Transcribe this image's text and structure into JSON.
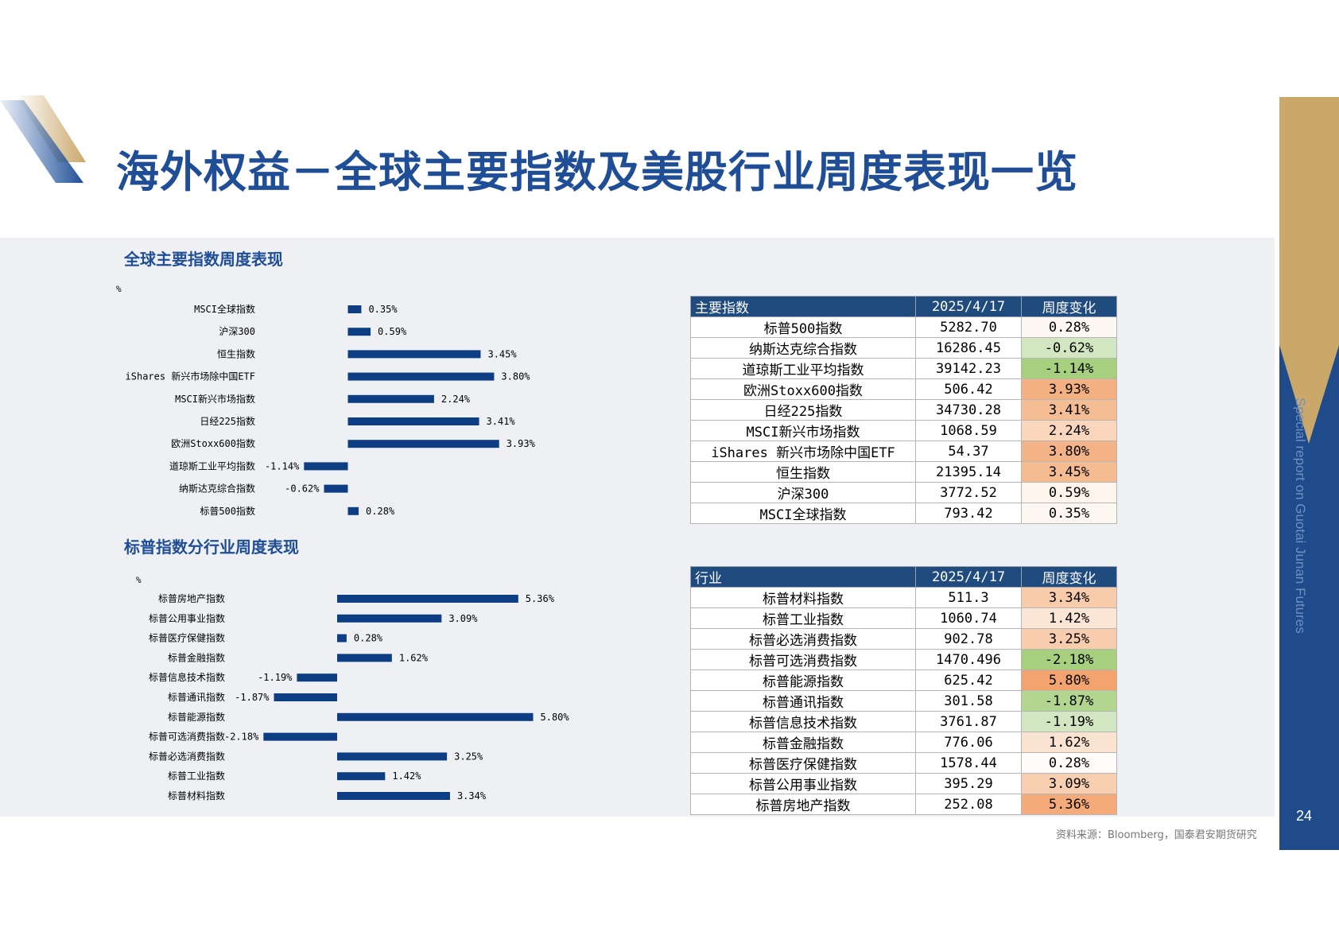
{
  "page": {
    "title": "海外权益－全球主要指数及美股行业周度表现一览",
    "page_number": "24",
    "side_text": "Special report on Guotai Junan Futures",
    "source": "资料来源：Bloomberg，国泰君安期货研究",
    "colors": {
      "title": "#1f4e96",
      "bar": "#0d3e84",
      "header": "#1f4b7e",
      "sidebar": "#1f4b8a",
      "gold": "#c9a86a"
    }
  },
  "charts": {
    "global": {
      "subtitle": "全球主要指数周度表现",
      "unit": "%"
    },
    "sector": {
      "subtitle": "标普指数分行业周度表现",
      "unit": "%"
    }
  },
  "chart_data": [
    {
      "type": "bar",
      "orientation": "horizontal",
      "ylabel": "%",
      "categories": [
        "MSCI全球指数",
        "沪深300",
        "恒生指数",
        "iShares 新兴市场除中国ETF",
        "MSCI新兴市场指数",
        "日经225指数",
        "欧洲Stoxx600指数",
        "道琼斯工业平均指数",
        "纳斯达克综合指数",
        "标普500指数"
      ],
      "values": [
        0.35,
        0.59,
        3.45,
        3.8,
        2.24,
        3.41,
        3.93,
        -1.14,
        -0.62,
        0.28
      ],
      "labels": [
        "0.35%",
        "0.59%",
        "3.45%",
        "3.80%",
        "2.24%",
        "3.41%",
        "3.93%",
        "-1.14%",
        "-0.62%",
        "0.28%"
      ]
    },
    {
      "type": "bar",
      "orientation": "horizontal",
      "ylabel": "%",
      "categories": [
        "标普房地产指数",
        "标普公用事业指数",
        "标普医疗保健指数",
        "标普金融指数",
        "标普信息技术指数",
        "标普通讯指数",
        "标普能源指数",
        "标普可选消费指数",
        "标普必选消费指数",
        "标普工业指数",
        "标普材料指数"
      ],
      "values": [
        5.36,
        3.09,
        0.28,
        1.62,
        -1.19,
        -1.87,
        5.8,
        -2.18,
        3.25,
        1.42,
        3.34
      ],
      "labels": [
        "5.36%",
        "3.09%",
        "0.28%",
        "1.62%",
        "-1.19%",
        "-1.87%",
        "5.80%",
        "-2.18%",
        "3.25%",
        "1.42%",
        "3.34%"
      ]
    }
  ],
  "tables": {
    "index": {
      "headers": [
        "主要指数",
        "2025/4/17",
        "周度变化"
      ],
      "rows": [
        {
          "name": "标普500指数",
          "price": "5282.70",
          "change": "0.28%",
          "color": "#fdf8f3"
        },
        {
          "name": "纳斯达克综合指数",
          "price": "16286.45",
          "change": "-0.62%",
          "color": "#d3e6c2"
        },
        {
          "name": "道琼斯工业平均指数",
          "price": "39142.23",
          "change": "-1.14%",
          "color": "#a6d07e"
        },
        {
          "name": "欧洲Stoxx600指数",
          "price": "506.42",
          "change": "3.93%",
          "color": "#f3b080"
        },
        {
          "name": "日经225指数",
          "price": "34730.28",
          "change": "3.41%",
          "color": "#f5bd94"
        },
        {
          "name": "MSCI新兴市场指数",
          "price": "1068.59",
          "change": "2.24%",
          "color": "#f9d6bc"
        },
        {
          "name": "iShares 新兴市场除中国ETF",
          "price": "54.37",
          "change": "3.80%",
          "color": "#f4b387"
        },
        {
          "name": "恒生指数",
          "price": "21395.14",
          "change": "3.45%",
          "color": "#f5bb91"
        },
        {
          "name": "沪深300",
          "price": "3772.52",
          "change": "0.59%",
          "color": "#fdf4ec"
        },
        {
          "name": "MSCI全球指数",
          "price": "793.42",
          "change": "0.35%",
          "color": "#fdf7f2"
        }
      ]
    },
    "sector": {
      "headers": [
        "行业",
        "2025/4/17",
        "周度变化"
      ],
      "rows": [
        {
          "name": "标普材料指数",
          "price": "511.3",
          "change": "3.34%",
          "color": "#f8ccaa"
        },
        {
          "name": "标普工业指数",
          "price": "1060.74",
          "change": "1.42%",
          "color": "#fbe5d5"
        },
        {
          "name": "标普必选消费指数",
          "price": "902.78",
          "change": "3.25%",
          "color": "#f8cdae"
        },
        {
          "name": "标普可选消费指数",
          "price": "1470.496",
          "change": "-2.18%",
          "color": "#a6d07e"
        },
        {
          "name": "标普能源指数",
          "price": "625.42",
          "change": "5.80%",
          "color": "#f3a46e"
        },
        {
          "name": "标普通讯指数",
          "price": "301.58",
          "change": "-1.87%",
          "color": "#b2d690"
        },
        {
          "name": "标普信息技术指数",
          "price": "3761.87",
          "change": "-1.19%",
          "color": "#d3e6c2"
        },
        {
          "name": "标普金融指数",
          "price": "776.06",
          "change": "1.62%",
          "color": "#fbe3d1"
        },
        {
          "name": "标普医疗保健指数",
          "price": "1578.44",
          "change": "0.28%",
          "color": "#fefbf8"
        },
        {
          "name": "标普公用事业指数",
          "price": "395.29",
          "change": "3.09%",
          "color": "#f8cfb1"
        },
        {
          "name": "标普房地产指数",
          "price": "252.08",
          "change": "5.36%",
          "color": "#f4ab79"
        }
      ]
    }
  }
}
